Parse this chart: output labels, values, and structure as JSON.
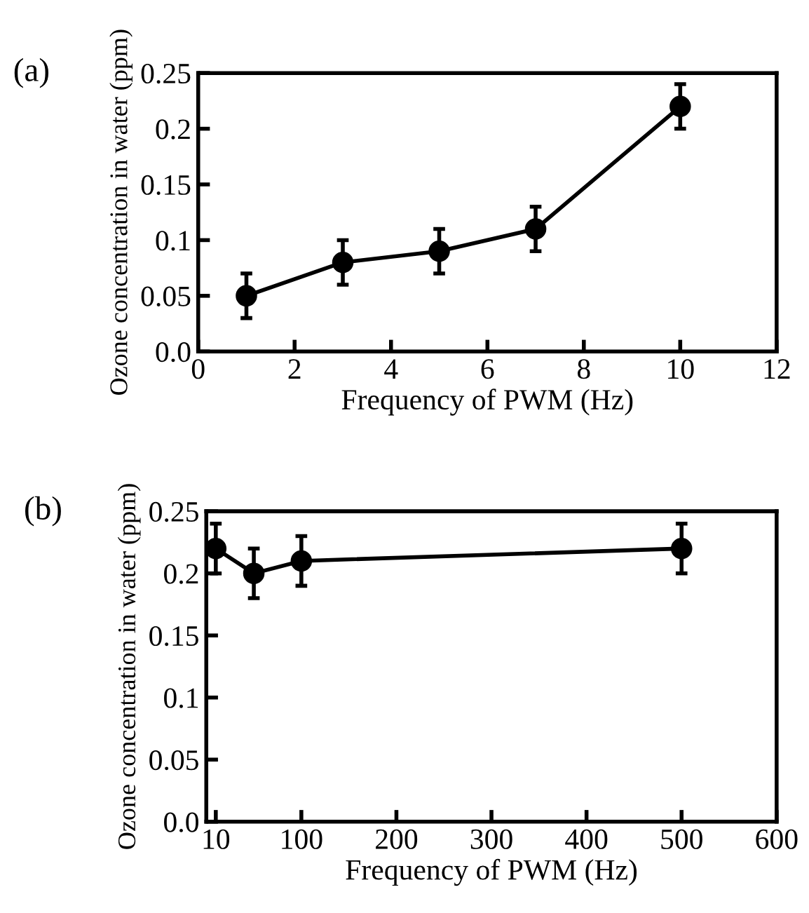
{
  "chart_data": [
    {
      "type": "line",
      "annotations": [
        "(a)"
      ],
      "xlabel": "Frequency of PWM (Hz)",
      "ylabel": "Ozone concentration in water (ppm)",
      "x": [
        1,
        3,
        5,
        7,
        10
      ],
      "series": [
        {
          "color": "#000000",
          "values": [
            0.05,
            0.08,
            0.09,
            0.11,
            0.22
          ],
          "errors": [
            0.02,
            0.02,
            0.02,
            0.02,
            0.02
          ]
        }
      ],
      "xlim": [
        0,
        12
      ],
      "xticks": [
        0,
        2,
        4,
        6,
        8,
        10,
        12
      ],
      "ylim": [
        0,
        0.25
      ],
      "yticks": [
        {
          "value": 0,
          "label": "0.0"
        },
        0.05,
        0.1,
        0.15,
        0.2,
        0.25
      ],
      "marker": "circle",
      "line_style": "solid",
      "grid": false,
      "legend": false
    },
    {
      "type": "line",
      "annotations": [
        "(b)"
      ],
      "xlabel": "Frequency of PWM (Hz)",
      "ylabel": "Ozone concentration in water (ppm)",
      "x": [
        10,
        50,
        100,
        500
      ],
      "series": [
        {
          "color": "#000000",
          "values": [
            0.22,
            0.2,
            0.21,
            0.22
          ],
          "errors": [
            0.02,
            0.02,
            0.02,
            0.02
          ]
        }
      ],
      "xlim": [
        0,
        600
      ],
      "xticks": [
        10,
        100,
        200,
        300,
        400,
        500,
        600
      ],
      "ylim": [
        0,
        0.25
      ],
      "yticks": [
        {
          "value": 0,
          "label": "0.0"
        },
        0.05,
        0.1,
        0.15,
        0.2,
        0.25
      ],
      "marker": "circle",
      "line_style": "solid",
      "grid": false,
      "legend": false
    }
  ]
}
